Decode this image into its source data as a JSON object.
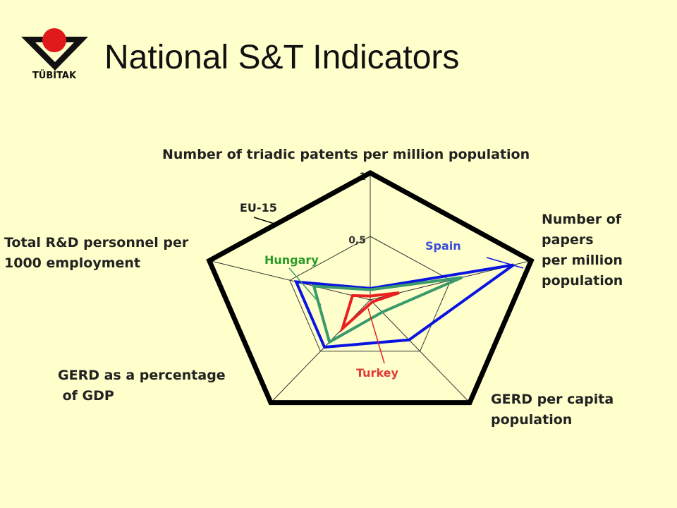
{
  "logo_text": "TÜBİTAK",
  "chart_data": {
    "type": "radar",
    "title": "National S&T Indicators",
    "axes": [
      [
        "Number of triadic patents per million population"
      ],
      [
        "Number of",
        "papers",
        "per million",
        "population"
      ],
      [
        "GERD per capita",
        "population"
      ],
      [
        "GERD as a percentage",
        " of GDP"
      ],
      [
        "Total R&D personnel per",
        "1000 employment"
      ]
    ],
    "rlim": [
      0,
      1
    ],
    "rticks": [
      {
        "value": 0.5,
        "label": "0,5"
      },
      1
    ],
    "series": [
      {
        "name": "EU-15",
        "color": "#000000",
        "values": [
          1,
          1,
          1,
          1,
          1
        ]
      },
      {
        "name": "Spain",
        "color": "#0a14e0",
        "values": [
          0.09,
          0.89,
          0.39,
          0.46,
          0.46
        ]
      },
      {
        "name": "Hungary",
        "color": "#3a9a6a",
        "values": [
          0.08,
          0.57,
          0.12,
          0.41,
          0.35
        ]
      },
      {
        "name": "Turkey",
        "color": "#e82020",
        "values": [
          0.03,
          0.18,
          0.02,
          0.28,
          0.11
        ]
      }
    ]
  }
}
